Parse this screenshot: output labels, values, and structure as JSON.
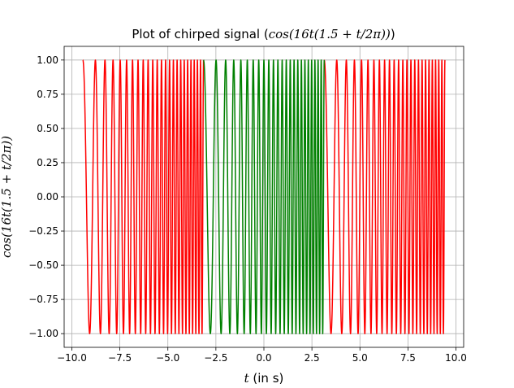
{
  "chart_data": {
    "type": "line",
    "title": "Plot of chirped signal (cos(16t(1.5 + t/2π)))",
    "title_parts": {
      "prefix": "Plot of chirped signal (",
      "math": "cos(16t(1.5 + t/2π))",
      "suffix": ")"
    },
    "xlabel": "t (in s)",
    "xlabel_parts": {
      "math": "t",
      "rest": " (in s)"
    },
    "ylabel": "cos(16t(1.5 + t/2π))",
    "xlim": [
      -10.4,
      10.4
    ],
    "ylim": [
      -1.1,
      1.1
    ],
    "xticks": [
      -10.0,
      -7.5,
      -5.0,
      -2.5,
      0.0,
      2.5,
      5.0,
      7.5,
      10.0
    ],
    "xtick_labels": [
      "−10.0",
      "−7.5",
      "−5.0",
      "−2.5",
      "0.0",
      "2.5",
      "5.0",
      "7.5",
      "10.0"
    ],
    "yticks": [
      -1.0,
      -0.75,
      -0.5,
      -0.25,
      0.0,
      0.25,
      0.5,
      0.75,
      1.0
    ],
    "ytick_labels": [
      "−1.00",
      "−0.75",
      "−0.50",
      "−0.25",
      "0.00",
      "0.25",
      "0.50",
      "0.75",
      "1.00"
    ],
    "grid": true,
    "series": [
      {
        "color": "#ff0000",
        "function": "cos(16*t*(1.5 + t/(2*pi)))",
        "periodic_in_t": "2π",
        "segments": [
          [
            -9.4248,
            -3.1416
          ],
          [
            3.1416,
            9.4248
          ]
        ]
      },
      {
        "color": "#008000",
        "function": "cos(16*t*(1.5 + t/(2*pi)))",
        "segments": [
          [
            -3.1416,
            3.1416
          ]
        ]
      }
    ]
  }
}
